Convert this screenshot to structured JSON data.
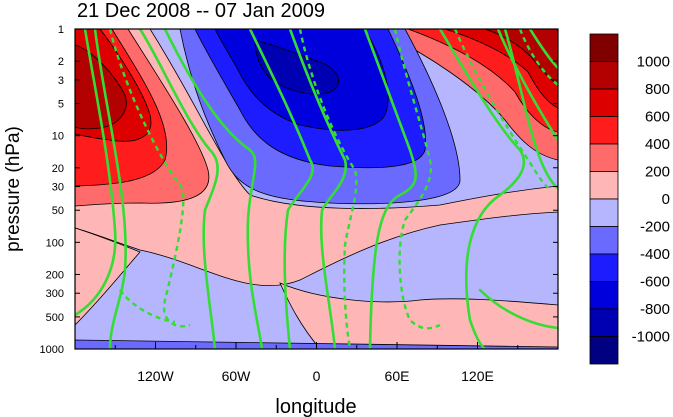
{
  "chart_data": {
    "type": "heatmap",
    "title": "21 Dec 2008 -- 07 Jan 2009",
    "xlabel": "longitude",
    "ylabel": "pressure (hPa)",
    "x_ticks": [
      "120W",
      "60W",
      "0",
      "60E",
      "120E"
    ],
    "x_tick_values": [
      -120,
      -60,
      0,
      60,
      120
    ],
    "xlim": [
      -180,
      180
    ],
    "y_scale": "log",
    "y_ticks": [
      "1",
      "2",
      "3",
      "5",
      "10",
      "20",
      "30",
      "50",
      "100",
      "200",
      "300",
      "500",
      "1000"
    ],
    "y_tick_values": [
      1,
      2,
      3,
      5,
      10,
      20,
      30,
      50,
      100,
      200,
      300,
      500,
      1000
    ],
    "ylim": [
      1000,
      1
    ],
    "colorbar": {
      "labels": [
        "1000",
        "800",
        "600",
        "400",
        "200",
        "0",
        "-200",
        "-400",
        "-600",
        "-800",
        "-1000"
      ],
      "levels": [
        1000,
        800,
        600,
        400,
        200,
        0,
        -200,
        -400,
        -600,
        -800,
        -1000
      ],
      "colors": [
        "#800000",
        "#b30000",
        "#dc0000",
        "#ff1c1c",
        "#ff6a6a",
        "#ffb6b6",
        "#b6b6ff",
        "#6a6aff",
        "#1c1cff",
        "#0000dc",
        "#0000b3",
        "#000080"
      ]
    },
    "overlay": {
      "color": "#33dd33",
      "style": "solid positive, dashed negative contours"
    },
    "grid": false
  }
}
